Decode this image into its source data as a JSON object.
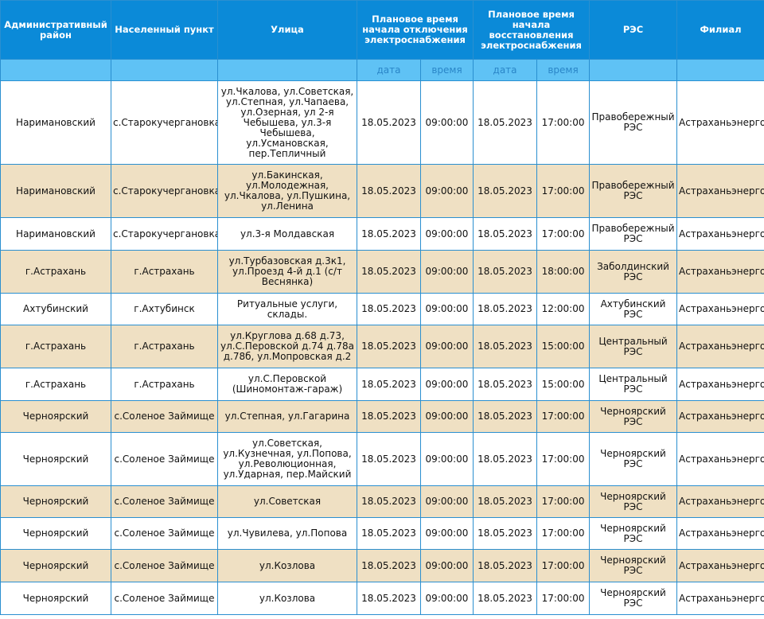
{
  "headers": {
    "district": "Административный район",
    "locality": "Населенный пункт",
    "street": "Улица",
    "off_time": "Плановое время начала отключения электроснабжения",
    "restore_time": "Плановое время начала восстановления электроснабжения",
    "res": "РЭС",
    "branch": "Филиал",
    "date": "дата",
    "time": "время"
  },
  "rows": [
    {
      "district": "Наримановский",
      "locality": "с.Старокучергановка",
      "street": "ул.Чкалова, ул.Советская, ул.Степная, ул.Чапаева, ул.Озерная, ул 2-я Чебышева, ул.3-я Чебышева, ул.Усмановская, пер.Тепличный",
      "off_date": "18.05.2023",
      "off_time": "09:00:00",
      "on_date": "18.05.2023",
      "on_time": "17:00:00",
      "res": "Правобережный РЭС",
      "branch": "Астраханьэнерго"
    },
    {
      "district": "Наримановский",
      "locality": "с.Старокучергановка",
      "street": "ул.Бакинская, ул.Молодежная, ул.Чкалова, ул.Пушкина, ул.Ленина",
      "off_date": "18.05.2023",
      "off_time": "09:00:00",
      "on_date": "18.05.2023",
      "on_time": "17:00:00",
      "res": "Правобережный РЭС",
      "branch": "Астраханьэнерго"
    },
    {
      "district": "Наримановский",
      "locality": "с.Старокучергановка",
      "street": "ул.3-я Молдавская",
      "off_date": "18.05.2023",
      "off_time": "09:00:00",
      "on_date": "18.05.2023",
      "on_time": "17:00:00",
      "res": "Правобережный РЭС",
      "branch": "Астраханьэнерго"
    },
    {
      "district": "г.Астрахань",
      "locality": "г.Астрахань",
      "street": "ул.Турбазовская д.3к1, ул.Проезд 4-й д.1 (с/т Веснянка)",
      "off_date": "18.05.2023",
      "off_time": "09:00:00",
      "on_date": "18.05.2023",
      "on_time": "18:00:00",
      "res": "Заболдинский РЭС",
      "branch": "Астраханьэнерго"
    },
    {
      "district": "Ахтубинский",
      "locality": "г.Ахтубинск",
      "street": "Ритуальные услуги, склады.",
      "off_date": "18.05.2023",
      "off_time": "09:00:00",
      "on_date": "18.05.2023",
      "on_time": "12:00:00",
      "res": "Ахтубинский РЭС",
      "branch": "Астраханьэнерго"
    },
    {
      "district": "г.Астрахань",
      "locality": "г.Астрахань",
      "street": "ул.Круглова д.68 д.73, ул.С.Перовской д.74 д.78а д.78б, ул.Мопровская д.2",
      "off_date": "18.05.2023",
      "off_time": "09:00:00",
      "on_date": "18.05.2023",
      "on_time": "15:00:00",
      "res": "Центральный РЭС",
      "branch": "Астраханьэнерго"
    },
    {
      "district": "г.Астрахань",
      "locality": "г.Астрахань",
      "street": "ул.С.Перовской (Шиномонтаж-гараж)",
      "off_date": "18.05.2023",
      "off_time": "09:00:00",
      "on_date": "18.05.2023",
      "on_time": "15:00:00",
      "res": "Центральный РЭС",
      "branch": "Астраханьэнерго"
    },
    {
      "district": "Черноярский",
      "locality": "с.Соленое Займище",
      "street": "ул.Степная, ул.Гагарина",
      "off_date": "18.05.2023",
      "off_time": "09:00:00",
      "on_date": "18.05.2023",
      "on_time": "17:00:00",
      "res": "Черноярский РЭС",
      "branch": "Астраханьэнерго"
    },
    {
      "district": "Черноярский",
      "locality": "с.Соленое Займище",
      "street": "ул.Советская, ул.Кузнечная, ул.Попова, ул.Революционная, ул.Ударная, пер.Майский",
      "off_date": "18.05.2023",
      "off_time": "09:00:00",
      "on_date": "18.05.2023",
      "on_time": "17:00:00",
      "res": "Черноярский РЭС",
      "branch": "Астраханьэнерго"
    },
    {
      "district": "Черноярский",
      "locality": "с.Соленое Займище",
      "street": "ул.Советская",
      "off_date": "18.05.2023",
      "off_time": "09:00:00",
      "on_date": "18.05.2023",
      "on_time": "17:00:00",
      "res": "Черноярский РЭС",
      "branch": "Астраханьэнерго"
    },
    {
      "district": "Черноярский",
      "locality": "с.Соленое Займище",
      "street": "ул.Чувилева, ул.Попова",
      "off_date": "18.05.2023",
      "off_time": "09:00:00",
      "on_date": "18.05.2023",
      "on_time": "17:00:00",
      "res": "Черноярский РЭС",
      "branch": "Астраханьэнерго"
    },
    {
      "district": "Черноярский",
      "locality": "с.Соленое Займище",
      "street": "ул.Козлова",
      "off_date": "18.05.2023",
      "off_time": "09:00:00",
      "on_date": "18.05.2023",
      "on_time": "17:00:00",
      "res": "Черноярский РЭС",
      "branch": "Астраханьэнерго"
    },
    {
      "district": "Черноярский",
      "locality": "с.Соленое Займище",
      "street": "ул.Козлова",
      "off_date": "18.05.2023",
      "off_time": "09:00:00",
      "on_date": "18.05.2023",
      "on_time": "17:00:00",
      "res": "Черноярский РЭС",
      "branch": "Астраханьэнерго"
    }
  ]
}
